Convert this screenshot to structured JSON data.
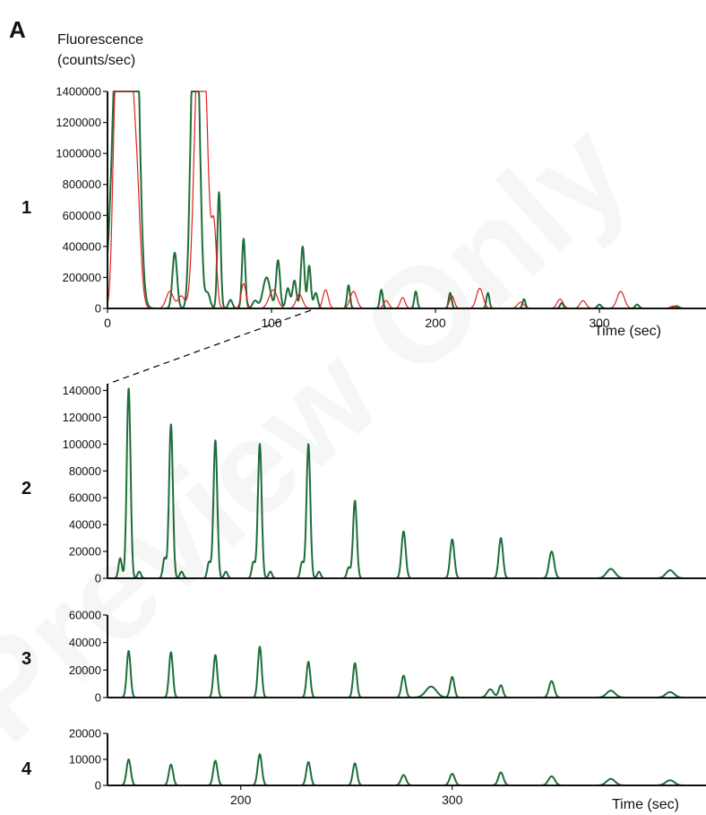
{
  "figure": {
    "panel_letter": "A",
    "y_title_line1": "Fluorescence",
    "y_title_line2": "(counts/sec)",
    "watermark_text": "Preview Only"
  },
  "colors": {
    "green": "#1e6e3a",
    "red": "#e02020",
    "axis": "#111111"
  },
  "chart_data": [
    {
      "type": "line",
      "panel": "1",
      "xlabel": "Time (sec)",
      "xlim": [
        0,
        365
      ],
      "ylim": [
        0,
        1400000
      ],
      "xticks": [
        0,
        100,
        200,
        300
      ],
      "yticks": [
        0,
        200000,
        400000,
        600000,
        800000,
        1000000,
        1200000,
        1400000
      ],
      "series": [
        {
          "color": "green",
          "peaks": [
            [
              6,
              1400000,
              3.5
            ],
            [
              10,
              1400000,
              3.5
            ],
            [
              14,
              1400000,
              3.5
            ],
            [
              17,
              1400000,
              2.5
            ],
            [
              41,
              360000,
              1.4
            ],
            [
              52,
              1400000,
              1.8
            ],
            [
              55,
              1400000,
              1.8
            ],
            [
              61,
              100000,
              1.5
            ],
            [
              68,
              750000,
              1.0
            ],
            [
              75,
              55000,
              1.2
            ],
            [
              83,
              450000,
              1.0
            ],
            [
              90,
              50000,
              1.5
            ],
            [
              97,
              200000,
              2.2
            ],
            [
              104,
              310000,
              1.2
            ],
            [
              110,
              130000,
              1.2
            ],
            [
              114,
              180000,
              1.2
            ],
            [
              119,
              400000,
              1.1
            ],
            [
              123,
              275000,
              1.0
            ],
            [
              127,
              100000,
              1.2
            ],
            [
              147,
              150000,
              0.9
            ],
            [
              167,
              120000,
              0.9
            ],
            [
              188,
              110000,
              0.9
            ],
            [
              209,
              100000,
              0.9
            ],
            [
              232,
              100000,
              0.9
            ],
            [
              254,
              60000,
              0.9
            ],
            [
              277,
              35000,
              1.0
            ],
            [
              300,
              25000,
              1.2
            ],
            [
              323,
              25000,
              1.2
            ],
            [
              347,
              15000,
              1.5
            ]
          ]
        },
        {
          "color": "red",
          "peaks": [
            [
              5,
              1400000,
              1.8
            ],
            [
              9,
              1400000,
              1.8
            ],
            [
              13,
              1400000,
              2.0
            ],
            [
              17,
              1000000,
              2.5
            ],
            [
              38,
              110000,
              2.2
            ],
            [
              45,
              80000,
              2.0
            ],
            [
              55,
              1400000,
              2.5
            ],
            [
              59,
              1400000,
              2.5
            ],
            [
              65,
              500000,
              1.5
            ],
            [
              83,
              160000,
              1.5
            ],
            [
              101,
              120000,
              2.5
            ],
            [
              117,
              90000,
              2.0
            ],
            [
              133,
              120000,
              1.6
            ],
            [
              150,
              110000,
              2.0
            ],
            [
              170,
              50000,
              1.5
            ],
            [
              180,
              70000,
              1.5
            ],
            [
              210,
              80000,
              1.5
            ],
            [
              227,
              130000,
              2.0
            ],
            [
              252,
              40000,
              2.0
            ],
            [
              276,
              60000,
              1.8
            ],
            [
              290,
              50000,
              1.8
            ],
            [
              313,
              110000,
              2.2
            ],
            [
              345,
              15000,
              1.8
            ]
          ]
        }
      ]
    },
    {
      "type": "line",
      "panel": "2",
      "xlim": [
        137,
        420
      ],
      "ylim": [
        0,
        145000
      ],
      "yticks": [
        0,
        20000,
        40000,
        60000,
        80000,
        100000,
        120000,
        140000
      ],
      "series": [
        {
          "color": "green",
          "peaks": [
            [
              147,
              142000,
              0.9
            ],
            [
              143,
              15000,
              0.8
            ],
            [
              152,
              5000,
              0.8
            ],
            [
              167,
              115000,
              0.9
            ],
            [
              164,
              15000,
              0.8
            ],
            [
              172,
              5000,
              0.8
            ],
            [
              188,
              103000,
              0.9
            ],
            [
              185,
              12000,
              0.8
            ],
            [
              193,
              5000,
              0.8
            ],
            [
              209,
              100000,
              0.9
            ],
            [
              206,
              12000,
              0.8
            ],
            [
              214,
              5000,
              0.8
            ],
            [
              232,
              100000,
              0.9
            ],
            [
              229,
              12000,
              0.8
            ],
            [
              237,
              5000,
              0.8
            ],
            [
              254,
              58000,
              0.9
            ],
            [
              251,
              8000,
              0.8
            ],
            [
              277,
              35000,
              1.0
            ],
            [
              300,
              29000,
              1.0
            ],
            [
              323,
              30000,
              1.0
            ],
            [
              347,
              20000,
              1.2
            ],
            [
              375,
              7000,
              2.0
            ],
            [
              403,
              6000,
              2.0
            ]
          ]
        }
      ]
    },
    {
      "type": "line",
      "panel": "3",
      "xlim": [
        137,
        420
      ],
      "ylim": [
        0,
        60000
      ],
      "yticks": [
        0,
        20000,
        40000,
        60000
      ],
      "series": [
        {
          "color": "green",
          "peaks": [
            [
              147,
              34000,
              0.9
            ],
            [
              167,
              33000,
              0.9
            ],
            [
              188,
              31000,
              0.9
            ],
            [
              209,
              37000,
              0.9
            ],
            [
              232,
              26000,
              0.9
            ],
            [
              254,
              25000,
              0.9
            ],
            [
              277,
              16000,
              1.0
            ],
            [
              290,
              8000,
              2.5
            ],
            [
              300,
              15000,
              1.0
            ],
            [
              318,
              6000,
              1.5
            ],
            [
              323,
              9000,
              1.0
            ],
            [
              347,
              12000,
              1.2
            ],
            [
              375,
              5000,
              2.0
            ],
            [
              403,
              4000,
              2.0
            ]
          ]
        }
      ]
    },
    {
      "type": "line",
      "panel": "4",
      "xlabel": "Time (sec)",
      "xlim": [
        137,
        420
      ],
      "ylim": [
        0,
        20000
      ],
      "xticks": [
        200,
        300
      ],
      "yticks": [
        0,
        10000,
        20000
      ],
      "series": [
        {
          "color": "green",
          "peaks": [
            [
              147,
              10000,
              1.0
            ],
            [
              167,
              8000,
              1.0
            ],
            [
              188,
              9500,
              1.0
            ],
            [
              209,
              12000,
              1.0
            ],
            [
              232,
              9000,
              1.0
            ],
            [
              254,
              8500,
              1.0
            ],
            [
              277,
              4000,
              1.2
            ],
            [
              300,
              4500,
              1.2
            ],
            [
              323,
              5000,
              1.2
            ],
            [
              347,
              3500,
              1.5
            ],
            [
              375,
              2500,
              2.0
            ],
            [
              403,
              2000,
              2.0
            ]
          ]
        }
      ]
    }
  ]
}
